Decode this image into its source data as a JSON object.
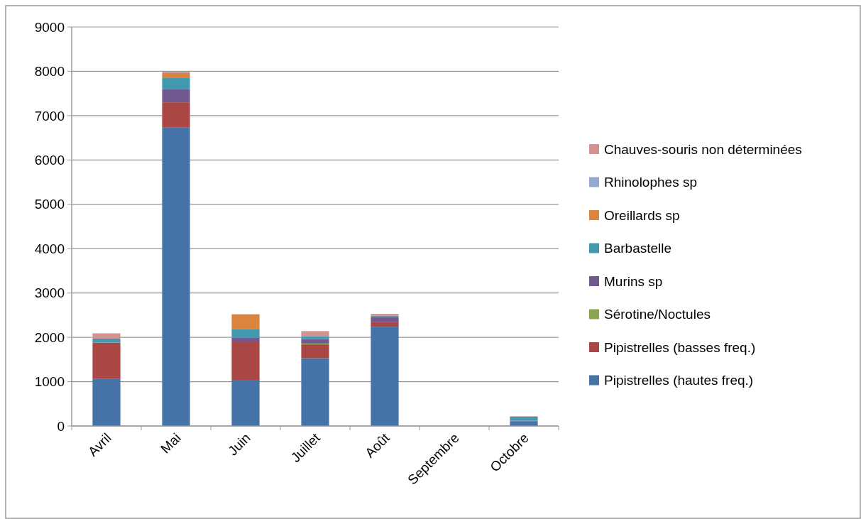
{
  "chart_data": {
    "type": "bar",
    "stacked": true,
    "categories": [
      "Avril",
      "Mai",
      "Juin",
      "Juillet",
      "Août",
      "Septembre",
      "Octobre"
    ],
    "series": [
      {
        "name": "Pipistrelles (hautes freq.)",
        "color": "#4572a7",
        "values": [
          1070,
          6730,
          1040,
          1530,
          2240,
          0,
          100
        ]
      },
      {
        "name": "Pipistrelles (basses freq.)",
        "color": "#aa4643",
        "values": [
          810,
          570,
          850,
          310,
          100,
          0,
          0
        ]
      },
      {
        "name": "Sérotine/Noctules",
        "color": "#89a54e",
        "values": [
          0,
          0,
          0,
          20,
          0,
          0,
          0
        ]
      },
      {
        "name": "Murins sp",
        "color": "#71588f",
        "values": [
          0,
          290,
          100,
          100,
          120,
          0,
          20
        ]
      },
      {
        "name": "Barbastelle",
        "color": "#4198af",
        "values": [
          90,
          270,
          200,
          60,
          30,
          0,
          90
        ]
      },
      {
        "name": "Oreillards sp",
        "color": "#db843d",
        "values": [
          0,
          100,
          330,
          0,
          0,
          0,
          0
        ]
      },
      {
        "name": "Rhinolophes sp",
        "color": "#93a9cf",
        "values": [
          0,
          0,
          0,
          0,
          0,
          0,
          0
        ]
      },
      {
        "name": "Chauves-souris non déterminées",
        "color": "#d19392",
        "values": [
          120,
          30,
          null,
          120,
          40,
          0,
          10
        ]
      }
    ],
    "ylim": [
      0,
      9000
    ],
    "yticks": [
      0,
      1000,
      2000,
      3000,
      4000,
      5000,
      6000,
      7000,
      8000,
      9000
    ],
    "grid": "y",
    "legend": "right"
  }
}
